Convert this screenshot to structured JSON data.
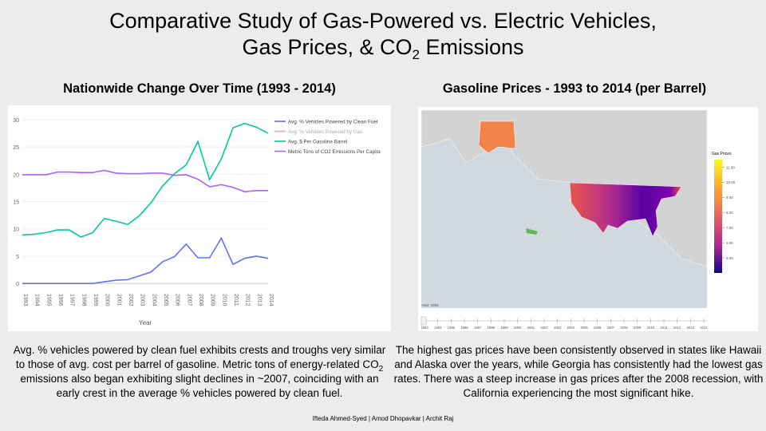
{
  "title": {
    "line1": "Comparative Study of Gas-Powered vs. Electric Vehicles,",
    "line2_start": "Gas Prices, & CO",
    "line2_sub": "2",
    "line2_end": " Emissions"
  },
  "captions": {
    "left": {
      "start": "Avg. % vehicles powered by clean fuel exhibits crests and troughs very similar to those of avg. cost per barrel of gasoline. Metric tons of energy-related CO",
      "sub": "2",
      "end": " emissions also began exhibiting slight declines in ~2007, coinciding with an early crest in the average % vehicles powered by clean fuel."
    },
    "right": "The highest gas prices have been consistently observed in states like Hawaii and Alaska over the years, while Georgia has consistently had the lowest gas rates. There was a steep increase in gas prices after the 2008 recession, with California experiencing the most significant hike."
  },
  "footer": "Ifteda Ahmed-Syed | Amod Dhopavkar | Archit Raj",
  "chart_data": [
    {
      "type": "line",
      "title": "Nationwide Change Over Time (1993 - 2014)",
      "x_label": "Year",
      "categories": [
        "1993",
        "1994",
        "1995",
        "1996",
        "1997",
        "1998",
        "1999",
        "2000",
        "2001",
        "2002",
        "2003",
        "2004",
        "2005",
        "2006",
        "2007",
        "2008",
        "2009",
        "2010",
        "2011",
        "2012",
        "2013",
        "2014"
      ],
      "ylim": [
        -1,
        31
      ],
      "yticks": [
        0,
        5,
        10,
        15,
        20,
        25,
        30
      ],
      "grid": true,
      "series": [
        {
          "name": "Avg. % Vehicles Powered by Clean Fuel",
          "color": "#636efa",
          "values": [
            0,
            0,
            0,
            0,
            0,
            0,
            0,
            0.3,
            0.6,
            0.7,
            1.4,
            2.1,
            4.0,
            4.9,
            7.2,
            4.7,
            4.7,
            8.3,
            3.5,
            4.6,
            5.0,
            4.6
          ]
        },
        {
          "name": "Avg. % Vehicles Powered by Gas",
          "color": "#ffa3c4"
        },
        {
          "name": "Avg. $ Per Gasoline Barrel",
          "color": "#00cc96",
          "values": [
            8.9,
            9.0,
            9.3,
            9.8,
            9.8,
            8.5,
            9.3,
            11.9,
            11.4,
            10.8,
            12.4,
            14.8,
            17.9,
            20.1,
            21.7,
            26.0,
            19.0,
            22.8,
            28.5,
            29.3,
            28.6,
            27.5
          ]
        },
        {
          "name": "Metric Tons of CO2 Emissions Per Capita",
          "color": "#ab63fa",
          "values": [
            19.9,
            19.9,
            19.9,
            20.4,
            20.4,
            20.3,
            20.3,
            20.7,
            20.2,
            20.1,
            20.1,
            20.2,
            20.2,
            19.8,
            19.9,
            19.1,
            17.7,
            18.1,
            17.6,
            16.8,
            17.0,
            17.0
          ]
        }
      ]
    },
    {
      "type": "map",
      "title": "Gasoline Prices - 1993 to 2014 (per Barrel)",
      "colorbar_title": "Gas Prices",
      "clim": [
        4,
        11.5
      ],
      "cticks": [
        {
          "value": 11,
          "label": "11.00"
        },
        {
          "value": 10,
          "label": "10.00"
        },
        {
          "value": 9,
          "label": "9.00"
        },
        {
          "value": 8,
          "label": "8.00"
        },
        {
          "value": 7,
          "label": "7.00"
        },
        {
          "value": 6,
          "label": "6.00"
        },
        {
          "value": 5,
          "label": "5.00"
        }
      ],
      "slider_label": "Year: 1993",
      "slider_steps": [
        "1993",
        "1994",
        "1995",
        "1996",
        "1997",
        "1998",
        "1999",
        "2000",
        "2001",
        "2002",
        "2003",
        "2004",
        "2005",
        "2006",
        "2007",
        "2008",
        "2009",
        "2010",
        "2011",
        "2012",
        "2013",
        "2014"
      ]
    }
  ]
}
